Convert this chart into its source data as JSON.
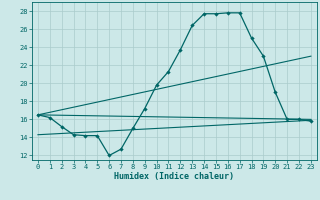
{
  "xlabel": "Humidex (Indice chaleur)",
  "background_color": "#cce8e8",
  "grid_color": "#aacccc",
  "line_color": "#006666",
  "xlim": [
    -0.5,
    23.5
  ],
  "ylim": [
    11.5,
    29.0
  ],
  "yticks": [
    12,
    14,
    16,
    18,
    20,
    22,
    24,
    26,
    28
  ],
  "xticks": [
    0,
    1,
    2,
    3,
    4,
    5,
    6,
    7,
    8,
    9,
    10,
    11,
    12,
    13,
    14,
    15,
    16,
    17,
    18,
    19,
    20,
    21,
    22,
    23
  ],
  "line1_x": [
    0,
    1,
    2,
    3,
    4,
    5,
    6,
    7,
    8,
    9,
    10,
    11,
    12,
    13,
    14,
    15,
    16,
    17,
    18,
    19,
    20,
    21,
    22,
    23
  ],
  "line1_y": [
    16.5,
    16.2,
    15.2,
    14.3,
    14.2,
    14.2,
    12.0,
    12.7,
    15.0,
    17.2,
    19.8,
    21.3,
    23.7,
    26.4,
    27.7,
    27.7,
    27.8,
    27.8,
    25.0,
    23.0,
    19.0,
    16.0,
    16.0,
    15.8
  ],
  "line2_x": [
    0,
    23
  ],
  "line2_y": [
    16.5,
    23.0
  ],
  "line3_x": [
    0,
    23
  ],
  "line3_y": [
    16.5,
    16.0
  ],
  "line4_x": [
    0,
    23
  ],
  "line4_y": [
    14.3,
    15.9
  ]
}
